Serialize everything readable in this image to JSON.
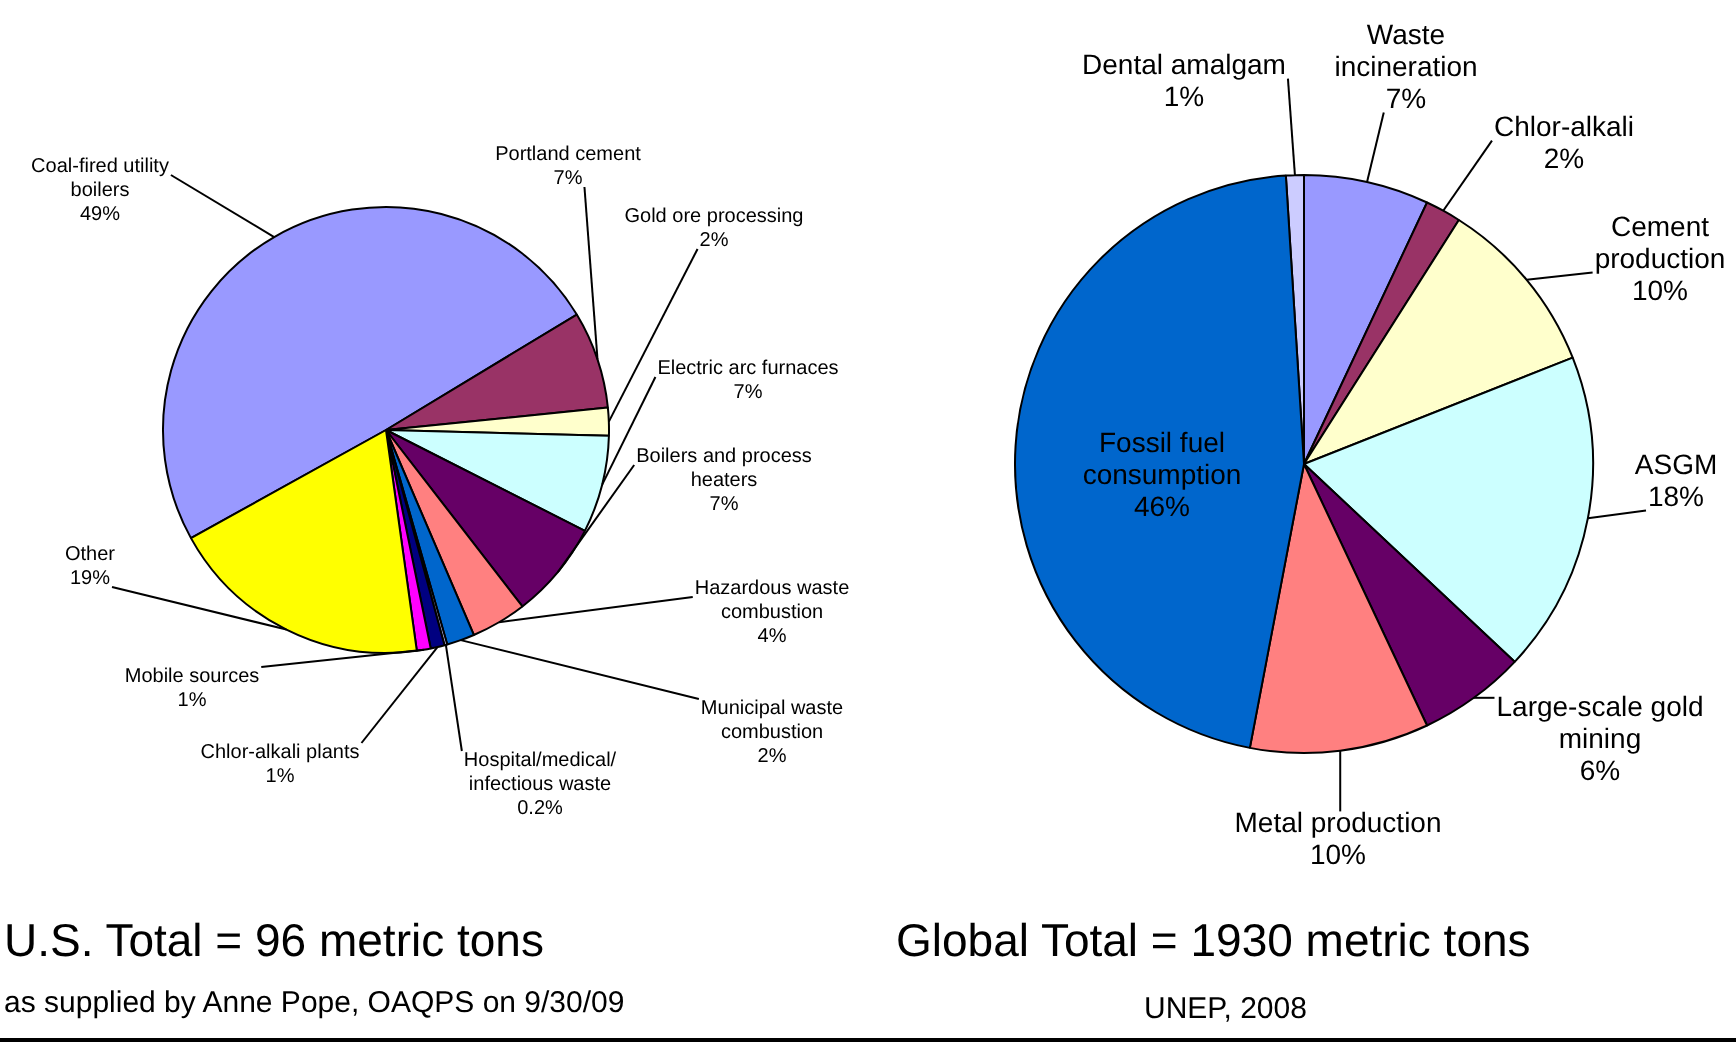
{
  "chart_data": [
    {
      "type": "pie",
      "title": "U.S. Total = 96 metric tons",
      "categories": [
        "Coal-fired utility boilers",
        "Portland cement",
        "Gold ore processing",
        "Electric arc furnaces",
        "Boilers and process heaters",
        "Hazardous waste combustion",
        "Municipal waste combustion",
        "Hospital/medical/infectious waste",
        "Chlor-alkali plants",
        "Mobile sources",
        "Other"
      ],
      "values": [
        49,
        7,
        2,
        7,
        7,
        4,
        2,
        0.2,
        1,
        1,
        19
      ],
      "colors": [
        "#9999ff",
        "#993366",
        "#ffffcc",
        "#ccffff",
        "#660066",
        "#ff8080",
        "#0066cc",
        "#ccccff",
        "#000080",
        "#ff00ff",
        "#ffff00"
      ],
      "data_labels": true,
      "value_labels": [
        "49%",
        "7%",
        "2%",
        "7%",
        "7%",
        "4%",
        "2%",
        "0.2%",
        "1%",
        "1%",
        "19%"
      ],
      "annotations": [
        "as supplied by Anne Pope, OAQPS on 9/30/09"
      ]
    },
    {
      "type": "pie",
      "title": "Global Total = 1930 metric tons",
      "categories": [
        "Dental amalgam",
        "Waste incineration",
        "Chlor-alkali",
        "Cement production",
        "ASGM",
        "Large-scale gold mining",
        "Metal production",
        "Fossil fuel consumption"
      ],
      "values": [
        1,
        7,
        2,
        10,
        18,
        6,
        10,
        46
      ],
      "colors": [
        "#ccccff",
        "#9999ff",
        "#993366",
        "#ffffcc",
        "#ccffff",
        "#660066",
        "#ff8080",
        "#0066cc"
      ],
      "data_labels": true,
      "value_labels": [
        "1%",
        "7%",
        "2%",
        "10%",
        "18%",
        "6%",
        "10%",
        "46%"
      ],
      "annotations": [
        "UNEP, 2008"
      ]
    }
  ]
}
